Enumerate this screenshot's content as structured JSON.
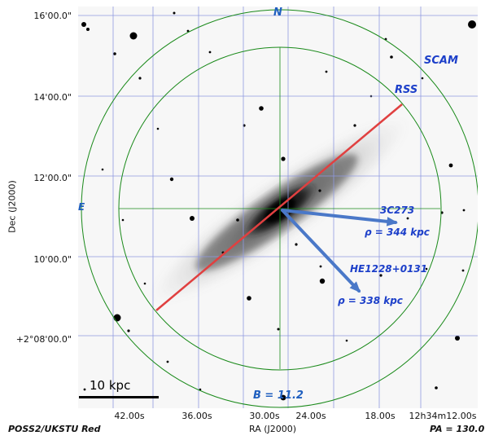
{
  "image": {
    "survey_label": "POSS2/UKSTU Red",
    "position_angle_label": "PA = 130.0",
    "compass": {
      "north": "N",
      "east": "E"
    },
    "magnitude_label": "B = 11.2",
    "scale_bar_label": "10 kpc",
    "instrument_labels": {
      "scam": "SCAM",
      "rss": "RSS"
    }
  },
  "axes": {
    "y_title": "Dec (J2000)",
    "x_title": "RA (J2000)",
    "y_ticks": [
      "16'00.0\"",
      "14'00.0\"",
      "12'00.0\"",
      "10'00.0\"",
      "+2°08'00.0\""
    ],
    "x_ticks": [
      "42.00s",
      "36.00s",
      "30.00s",
      "24.00s",
      "18.00s",
      "12h34m12.00s"
    ]
  },
  "annotations": [
    {
      "name": "3C273",
      "distance": "ρ  = 344 kpc"
    },
    {
      "name": "HE1228+0131",
      "distance": "ρ  = 338 kpc"
    }
  ],
  "colors": {
    "grid": "#8f99e0",
    "circle": "#1a8a1a",
    "slit": "#e04040",
    "arrow": "#4a78c8",
    "label_blue": "#1f5fbf"
  }
}
